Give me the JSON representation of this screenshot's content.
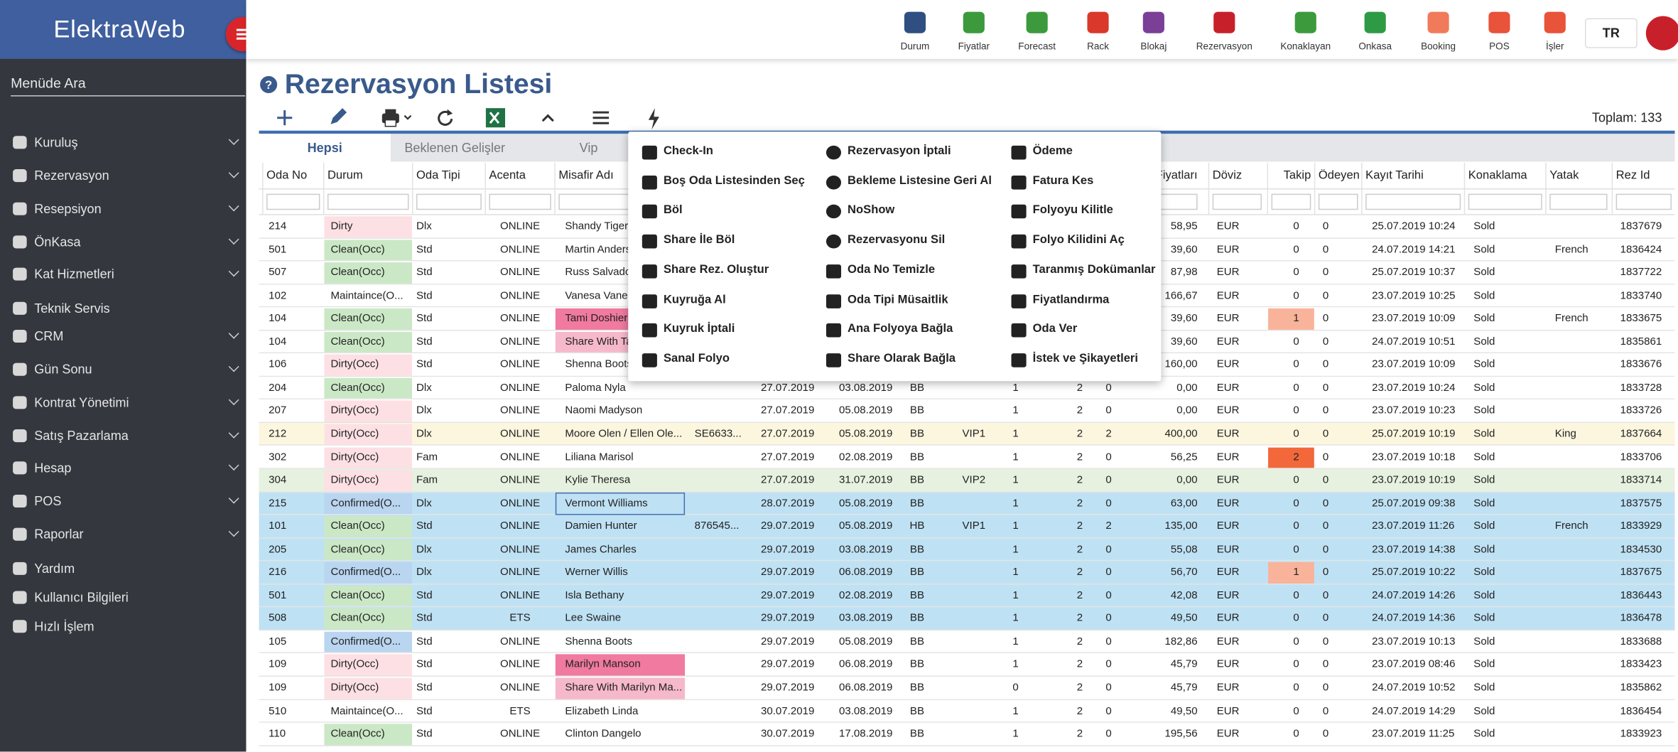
{
  "sidebar": {
    "logo": "ElektraWeb",
    "search": "Menüde Ara",
    "menu": [
      "Kuruluş",
      "Rezervasyon",
      "Resepsiyon",
      "ÖnKasa",
      "Kat Hizmetleri",
      "Teknik Servis",
      "CRM",
      "Gün Sonu",
      "Kontrat Yönetimi",
      "Satış Pazarlama",
      "Hesap",
      "POS",
      "Raporlar",
      "Yardım",
      "Kullanıcı Bilgileri",
      "Hızlı İşlem"
    ]
  },
  "topnav": {
    "items": [
      "Durum",
      "Fiyatlar",
      "Forecast",
      "Rack",
      "Blokaj",
      "Rezervasyon",
      "Konaklayan",
      "Onkasa",
      "Booking",
      "POS",
      "İşler"
    ],
    "language": "TR"
  },
  "page": {
    "title": "Rezervasyon Listesi",
    "total": "Toplam: 133",
    "tabs": [
      "Hepsi",
      "Beklenen Gelişler",
      "Vip"
    ]
  },
  "table": {
    "headers": [
      "Oda No",
      "Durum",
      "Oda Tipi",
      "Acenta",
      "Misafir Adı",
      null,
      null,
      null,
      null,
      null,
      null,
      null,
      null,
      "Fiyatları",
      "Döviz",
      "Takip",
      "Ödeyen",
      "Kayıt Tarihi",
      "Konaklama",
      "Yatak",
      "Rez Id"
    ],
    "rows": [
      [
        "214",
        "Dirty",
        "Dlx",
        "ONLINE",
        "Shandy Tiger",
        null,
        null,
        null,
        null,
        null,
        null,
        null,
        null,
        "58,95",
        "EUR",
        "0",
        "0",
        "25.07.2019 10:24",
        "Sold",
        null,
        "1837679"
      ],
      [
        "501",
        "Clean(Occ)",
        "Std",
        "ONLINE",
        "Martin Anders",
        null,
        null,
        null,
        null,
        null,
        null,
        null,
        null,
        "39,60",
        "EUR",
        "0",
        "0",
        "24.07.2019 14:21",
        "Sold",
        "French",
        "1836424"
      ],
      [
        "507",
        "Clean(Occ)",
        "Std",
        "ONLINE",
        "Russ Salvador",
        null,
        null,
        null,
        null,
        null,
        null,
        null,
        null,
        "87,98",
        "EUR",
        "0",
        "0",
        "25.07.2019 10:37",
        "Sold",
        null,
        "1837722"
      ],
      [
        "102",
        "Maintaince(O...",
        "Std",
        "ONLINE",
        "Vanesa Vanes",
        null,
        null,
        null,
        null,
        null,
        null,
        null,
        null,
        "166,67",
        "EUR",
        "0",
        "0",
        "23.07.2019 10:25",
        "Sold",
        null,
        "1833740"
      ],
      [
        "104",
        "Clean(Occ)",
        "Std",
        "ONLINE",
        "Tami Doshier",
        null,
        null,
        null,
        null,
        null,
        null,
        null,
        null,
        "39,60",
        "EUR",
        "1",
        "0",
        "23.07.2019 10:09",
        "Sold",
        "French",
        "1833675"
      ],
      [
        "104",
        "Clean(Occ)",
        "Std",
        "ONLINE",
        "Share With Ta",
        null,
        null,
        null,
        null,
        null,
        null,
        null,
        null,
        "39,60",
        "EUR",
        "0",
        "0",
        "24.07.2019 10:51",
        "Sold",
        null,
        "1835861"
      ],
      [
        "106",
        "Dirty(Occ)",
        "Std",
        "ONLINE",
        "Shenna Boots",
        null,
        null,
        null,
        null,
        null,
        null,
        null,
        null,
        "160,00",
        "EUR",
        "0",
        "0",
        "23.07.2019 10:09",
        "Sold",
        null,
        "1833676"
      ],
      [
        "204",
        "Clean(Occ)",
        "Dlx",
        "ONLINE",
        "Paloma Nyla",
        null,
        "27.07.2019",
        "03.08.2019",
        "BB",
        null,
        "1",
        "2",
        "0",
        "0,00",
        "EUR",
        "0",
        "0",
        "23.07.2019 10:24",
        "Sold",
        null,
        "1833728"
      ],
      [
        "207",
        "Dirty(Occ)",
        "Dlx",
        "ONLINE",
        "Naomi Madyson",
        null,
        "27.07.2019",
        "05.08.2019",
        "BB",
        null,
        "1",
        "2",
        "0",
        "0,00",
        "EUR",
        "0",
        "0",
        "23.07.2019 10:23",
        "Sold",
        null,
        "1833726"
      ],
      [
        "212",
        "Dirty(Occ)",
        "Dlx",
        "ONLINE",
        "Moore Olen / Ellen Ole...",
        "SE6633...",
        "27.07.2019",
        "05.08.2019",
        "BB",
        "VIP1",
        "1",
        "2",
        "2",
        "400,00",
        "EUR",
        "0",
        "0",
        "25.07.2019 10:19",
        "Sold",
        "King",
        "1837664"
      ],
      [
        "302",
        "Dirty(Occ)",
        "Fam",
        "ONLINE",
        "Liliana Marisol",
        null,
        "27.07.2019",
        "02.08.2019",
        "BB",
        null,
        "1",
        "2",
        "0",
        "56,25",
        "EUR",
        "2",
        "0",
        "23.07.2019 10:18",
        "Sold",
        null,
        "1833706"
      ],
      [
        "304",
        "Dirty(Occ)",
        "Fam",
        "ONLINE",
        "Kylie Theresa",
        null,
        "27.07.2019",
        "31.07.2019",
        "BB",
        "VIP2",
        "1",
        "2",
        "0",
        "0,00",
        "EUR",
        "0",
        "0",
        "23.07.2019 10:19",
        "Sold",
        null,
        "1833714"
      ],
      [
        "215",
        "Confirmed(O...",
        "Dlx",
        "ONLINE",
        "Vermont Williams",
        null,
        "28.07.2019",
        "05.08.2019",
        "BB",
        null,
        "1",
        "2",
        "0",
        "63,00",
        "EUR",
        "0",
        "0",
        "25.07.2019 09:38",
        "Sold",
        null,
        "1837575"
      ],
      [
        "101",
        "Clean(Occ)",
        "Std",
        "ONLINE",
        "Damien Hunter",
        "876545...",
        "29.07.2019",
        "05.08.2019",
        "HB",
        "VIP1",
        "1",
        "2",
        "2",
        "135,00",
        "EUR",
        "0",
        "0",
        "23.07.2019 11:26",
        "Sold",
        "French",
        "1833929"
      ],
      [
        "205",
        "Clean(Occ)",
        "Dlx",
        "ONLINE",
        "James Charles",
        null,
        "29.07.2019",
        "03.08.2019",
        "BB",
        null,
        "1",
        "2",
        "0",
        "55,08",
        "EUR",
        "0",
        "0",
        "23.07.2019 14:38",
        "Sold",
        null,
        "1834530"
      ],
      [
        "216",
        "Confirmed(O...",
        "Dlx",
        "ONLINE",
        "Werner Willis",
        null,
        "29.07.2019",
        "06.08.2019",
        "BB",
        null,
        "1",
        "2",
        "0",
        "56,70",
        "EUR",
        "1",
        "0",
        "25.07.2019 10:22",
        "Sold",
        null,
        "1837675"
      ],
      [
        "501",
        "Clean(Occ)",
        "Std",
        "ONLINE",
        "Isla Bethany",
        null,
        "29.07.2019",
        "02.08.2019",
        "BB",
        null,
        "1",
        "2",
        "0",
        "42,08",
        "EUR",
        "0",
        "0",
        "24.07.2019 14:26",
        "Sold",
        null,
        "1836443"
      ],
      [
        "508",
        "Clean(Occ)",
        "Std",
        "ETS",
        "Lee Swaine",
        null,
        "29.07.2019",
        "03.08.2019",
        "BB",
        null,
        "1",
        "2",
        "0",
        "49,50",
        "EUR",
        "0",
        "0",
        "24.07.2019 14:36",
        "Sold",
        null,
        "1836478"
      ],
      [
        "105",
        "Confirmed(O...",
        "Std",
        "ONLINE",
        "Shenna Boots",
        null,
        "29.07.2019",
        "05.08.2019",
        "BB",
        null,
        "1",
        "2",
        "0",
        "182,86",
        "EUR",
        "0",
        "0",
        "23.07.2019 10:13",
        "Sold",
        null,
        "1833688"
      ],
      [
        "109",
        "Dirty(Occ)",
        "Std",
        "ONLINE",
        "Marilyn Manson",
        null,
        "29.07.2019",
        "06.08.2019",
        "BB",
        null,
        "1",
        "2",
        "0",
        "45,79",
        "EUR",
        "0",
        "0",
        "23.07.2019 08:46",
        "Sold",
        null,
        "1833423"
      ],
      [
        "109",
        "Dirty(Occ)",
        "Std",
        "ONLINE",
        "Share With Marilyn Ma...",
        null,
        "29.07.2019",
        "06.08.2019",
        "BB",
        null,
        "0",
        "2",
        "0",
        "45,79",
        "EUR",
        "0",
        "0",
        "24.07.2019 10:52",
        "Sold",
        null,
        "1835862"
      ],
      [
        "510",
        "Maintaince(O...",
        "Std",
        "ETS",
        "Elizabeth Linda",
        null,
        "30.07.2019",
        "03.08.2019",
        "BB",
        null,
        "1",
        "2",
        "0",
        "49,50",
        "EUR",
        "0",
        "0",
        "24.07.2019 14:29",
        "Sold",
        null,
        "1836454"
      ],
      [
        "110",
        "Clean(Occ)",
        "Std",
        "ONLINE",
        "Clinton Dangelo",
        null,
        "30.07.2019",
        "17.08.2019",
        "BB",
        null,
        "1",
        "2",
        "0",
        "195,56",
        "EUR",
        "0",
        "0",
        "23.07.2019 11:25",
        "Sold",
        null,
        "1833923"
      ]
    ]
  },
  "context_menu": {
    "columns": [
      [
        "Check-In",
        "Boş Oda Listesinden Seç",
        "Böl",
        "Share İle Böl",
        "Share Rez. Oluştur",
        "Kuyruğa Al",
        "Kuyruk İptali",
        "Sanal Folyo"
      ],
      [
        "Rezervasyon İptali",
        "Bekleme Listesine Geri Al",
        "NoShow",
        "Rezervasyonu Sil",
        "Oda No Temizle",
        "Oda Tipi Müsaitlik",
        "Ana Folyoya Bağla",
        "Share Olarak Bağla"
      ],
      [
        "Ödeme",
        "Fatura Kes",
        "Folyoyu Kilitle",
        "Folyo Kilidini Aç",
        "Taranmış Dokümanlar",
        "Fiyatlandırma",
        "Oda Ver",
        "İstek ve Şikayetleri"
      ]
    ]
  }
}
